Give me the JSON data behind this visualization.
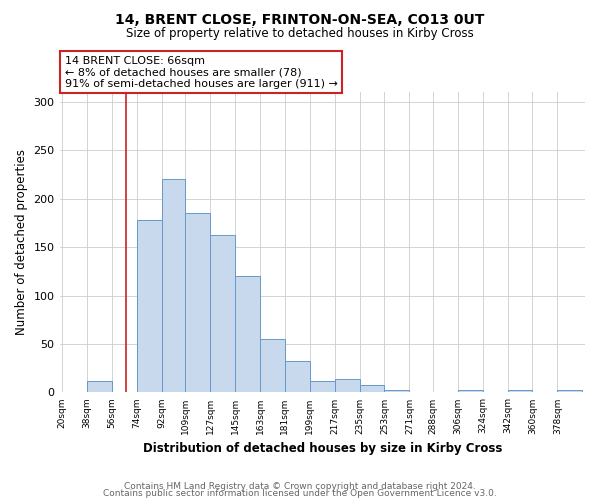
{
  "title": "14, BRENT CLOSE, FRINTON-ON-SEA, CO13 0UT",
  "subtitle": "Size of property relative to detached houses in Kirby Cross",
  "xlabel": "Distribution of detached houses by size in Kirby Cross",
  "ylabel": "Number of detached properties",
  "footnote1": "Contains HM Land Registry data © Crown copyright and database right 2024.",
  "footnote2": "Contains public sector information licensed under the Open Government Licence v3.0.",
  "annotation_line1": "14 BRENT CLOSE: 66sqm",
  "annotation_line2": "← 8% of detached houses are smaller (78)",
  "annotation_line3": "91% of semi-detached houses are larger (911) →",
  "bar_color": "#c8d9ee",
  "bar_edge_color": "#6699cc",
  "vline_color": "#cc2222",
  "vline_x": 66,
  "annotation_box_color": "#cc2222",
  "bin_edges": [
    20,
    38,
    56,
    74,
    92,
    109,
    127,
    145,
    163,
    181,
    199,
    217,
    235,
    253,
    271,
    288,
    306,
    324,
    342,
    360,
    378,
    396
  ],
  "values": [
    0,
    12,
    0,
    178,
    220,
    185,
    162,
    120,
    55,
    32,
    12,
    14,
    8,
    3,
    0,
    0,
    2,
    0,
    3,
    0,
    3
  ],
  "ylim": [
    0,
    310
  ],
  "background_color": "#ffffff",
  "grid_color": "#cccccc"
}
